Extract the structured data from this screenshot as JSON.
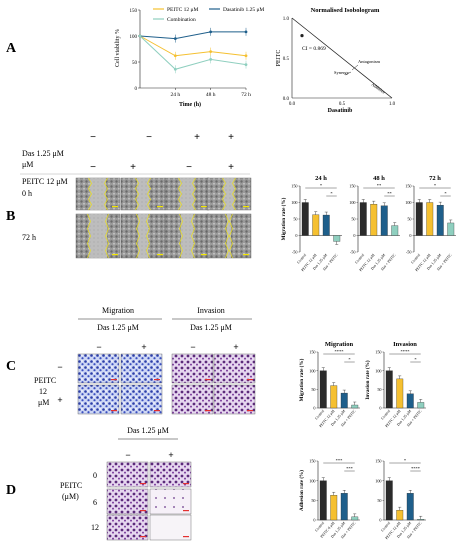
{
  "panels": {
    "A": "A",
    "B": "B",
    "C": "C",
    "D": "D"
  },
  "colors": {
    "control": "#2b2b2b",
    "peitc": "#f5c030",
    "das": "#1f5f8b",
    "combo": "#8fcfbf",
    "scratch_line": "#e6dc2a",
    "scale_yellow": "#f2e600",
    "scale_red": "#e33030",
    "stain_blue": "#2c3ea8",
    "stain_purple": "#5b2a7a"
  },
  "panelA": {
    "line_chart": {
      "ylabel": "Cell viability %",
      "xlabel": "Time (h)",
      "legend": [
        "PEITC 12 μM",
        "Dasatinib 1.25 μM",
        "Combination"
      ]
    },
    "isobologram": {
      "title": "Normalised Isobologram",
      "ylabel": "PEITC",
      "xlabel": "Dasatinib",
      "ci_label": "CI = 0.869",
      "annotations": [
        "Antagonism",
        "Synergy",
        "Additive"
      ]
    }
  },
  "panelB": {
    "row_labels": [
      "Das 1.25 μM",
      "PEITC 12 μM"
    ],
    "das_signs": [
      "−",
      "−",
      "+",
      "+"
    ],
    "peitc_signs": [
      "−",
      "+",
      "−",
      "+"
    ],
    "time_labels": [
      "0 h",
      "72 h"
    ]
  },
  "panelC": {
    "headers": [
      "Migration",
      "Invasion"
    ],
    "das_label": "Das 1.25 μM",
    "col_signs": [
      "−",
      "+",
      "−",
      "+"
    ],
    "peitc_label": "PEITC 12 μM",
    "row_signs": [
      "−",
      "+"
    ]
  },
  "panelD": {
    "das_label": "Das 1.25 μM",
    "col_signs": [
      "−",
      "+"
    ],
    "peitc_label": "PEITC (μM)",
    "doses": [
      "0",
      "6",
      "12"
    ]
  },
  "chart_data": [
    {
      "id": "A-line",
      "type": "line",
      "x": [
        0,
        24,
        48,
        72
      ],
      "xticks": [
        "24 h",
        "48 h",
        "72 h"
      ],
      "ylim": [
        0,
        150
      ],
      "yticks": [
        "150",
        "100",
        "50",
        "0"
      ],
      "xlabel": "Time (h)",
      "ylabel": "Cell viability %",
      "series": [
        {
          "name": "PEITC 12 μM",
          "values": [
            100,
            62,
            70,
            62
          ]
        },
        {
          "name": "Dasatinib 1.25 μM",
          "values": [
            100,
            95,
            108,
            108
          ]
        },
        {
          "name": "Combination",
          "values": [
            100,
            36,
            55,
            45
          ]
        }
      ]
    },
    {
      "id": "A-isobologram",
      "type": "scatter",
      "title": "Normalised Isobologram",
      "xlabel": "Dasatinib",
      "ylabel": "PEITC",
      "xlim": [
        0,
        1.0
      ],
      "ylim": [
        0,
        1.0
      ],
      "xticks": [
        "0.0",
        "0.5",
        "1.0"
      ],
      "yticks": [
        "1.0",
        "0.5",
        "0.0"
      ],
      "points": [
        {
          "x": 0.1,
          "y": 0.78
        }
      ],
      "ci": "CI = 0.869"
    },
    {
      "id": "B-24h",
      "type": "bar",
      "title": "24 h",
      "ylabel": "Migration rate (%)",
      "ylim": [
        -50,
        150
      ],
      "yticks": [
        "150",
        "100",
        "50",
        "0",
        "-50"
      ],
      "categories": [
        "Control",
        "PEITC 12 μM",
        "Das 1.25 μM",
        "Das + PEITC"
      ],
      "values": [
        100,
        63,
        62,
        -18
      ],
      "significance": [
        "*",
        "*"
      ]
    },
    {
      "id": "B-48h",
      "type": "bar",
      "title": "48 h",
      "ylim": [
        -50,
        150
      ],
      "yticks": [
        "150",
        "100",
        "50",
        "0",
        "-50"
      ],
      "categories": [
        "Control",
        "PEITC 12 μM",
        "Das 1.25 μM",
        "Das + PEITC"
      ],
      "values": [
        100,
        95,
        90,
        30
      ],
      "significance": [
        "**",
        "**"
      ]
    },
    {
      "id": "B-72h",
      "type": "bar",
      "title": "72 h",
      "ylim": [
        -50,
        150
      ],
      "yticks": [
        "150",
        "100",
        "50",
        "0",
        "-50"
      ],
      "categories": [
        "Control",
        "PEITC 12 μM",
        "Das 1.25 μM",
        "Das + PEITC"
      ],
      "values": [
        100,
        100,
        92,
        38
      ],
      "significance": [
        "*",
        "*"
      ]
    },
    {
      "id": "C-migration",
      "type": "bar",
      "title": "Migration",
      "ylabel": "Migration rate (%)",
      "ylim": [
        0,
        150
      ],
      "yticks": [
        "150",
        "100",
        "50",
        "0"
      ],
      "categories": [
        "Control",
        "PEITC 12 μM",
        "Das 1.25 μM",
        "Das + PEITC"
      ],
      "values": [
        100,
        60,
        40,
        8
      ],
      "significance": [
        "****",
        "*"
      ]
    },
    {
      "id": "C-invasion",
      "type": "bar",
      "title": "Invasion",
      "ylabel": "Invasion rate (%)",
      "ylim": [
        0,
        150
      ],
      "yticks": [
        "150",
        "100",
        "50",
        "0"
      ],
      "categories": [
        "Control",
        "PEITC 12 μM",
        "Das 1.25 μM",
        "Das + PEITC"
      ],
      "values": [
        100,
        78,
        38,
        15
      ],
      "significance": [
        "****",
        "*"
      ]
    },
    {
      "id": "D-left",
      "type": "bar",
      "ylabel": "Adhesion rate (%)",
      "ylim": [
        0,
        150
      ],
      "yticks": [
        "150",
        "100",
        "50",
        "0"
      ],
      "categories": [
        "Control",
        "PEITC 6 μM",
        "Das 1.25 μM",
        "Das + PEITC"
      ],
      "values": [
        100,
        63,
        68,
        8
      ],
      "significance": [
        "***",
        "***"
      ]
    },
    {
      "id": "D-right",
      "type": "bar",
      "ylim": [
        0,
        150
      ],
      "yticks": [
        "150",
        "100",
        "50",
        "0"
      ],
      "categories": [
        "Control",
        "PEITC 12 μM",
        "Das 1.25 μM",
        "Das + PEITC"
      ],
      "values": [
        100,
        25,
        68,
        2
      ],
      "significance": [
        "*",
        "****"
      ]
    }
  ]
}
